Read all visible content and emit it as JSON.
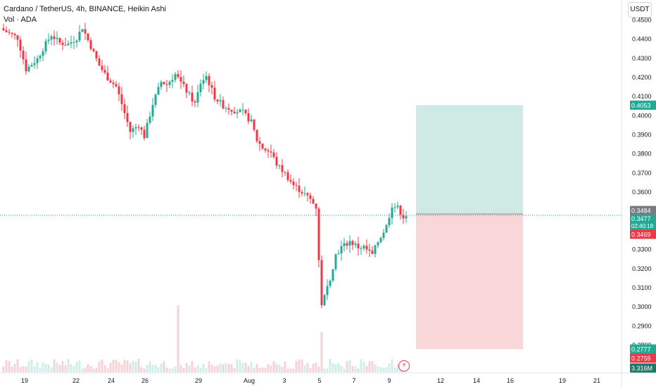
{
  "header": {
    "title": "Cardano / TetherUS, 4h, BINANCE, Heikin Ashi",
    "indicator": "Vol · ADA"
  },
  "currency_button": "USDT",
  "icons": {
    "alert": "lightning-icon"
  },
  "colors": {
    "up": "#22ab94",
    "down": "#f23645",
    "vol_up": "#d1ede8",
    "vol_down": "#f6d3d6",
    "target_zone": "#cfeae5",
    "stop_zone": "#f9d7d9",
    "price_line": "#22ab94"
  },
  "chart_data": {
    "type": "candlestick",
    "title": "Cardano / TetherUS, 4h, BINANCE, Heikin Ashi",
    "ylim": [
      0.2765,
      0.458
    ],
    "y_ticks": [
      "0.4500",
      "0.4400",
      "0.4300",
      "0.4200",
      "0.4100",
      "0.4000",
      "0.3900",
      "0.3800",
      "0.3700",
      "0.3600",
      "0.3300",
      "0.3200",
      "0.3100",
      "0.3000",
      "0.2900",
      "0.2800"
    ],
    "x_ticks": [
      "19",
      "22",
      "24",
      "26",
      "29",
      "Aug",
      "3",
      "5",
      "7",
      "9",
      "12",
      "14",
      "16",
      "19",
      "21"
    ],
    "price_labels": {
      "target": "0.4053",
      "entry": "0.3484",
      "last": "0.3477",
      "countdown": "02:40:18",
      "prev": "0.3469",
      "sl1": "0.2777",
      "sl2": "0.2759",
      "volume": "3.316M"
    },
    "position": {
      "target": 0.4053,
      "entry": 0.3484,
      "stop": 0.2777,
      "start_bar": 147,
      "end_bar": 185
    },
    "volume_spikes": [
      {
        "bar": 62,
        "level": 1.0
      },
      {
        "bar": 113,
        "level": 0.6
      },
      {
        "bar": 152,
        "level": 1.0
      },
      {
        "bar": 153,
        "level": 0.9
      }
    ],
    "path": [
      [
        0,
        0.4445
      ],
      [
        5,
        0.4405
      ],
      [
        8,
        0.424
      ],
      [
        12,
        0.4295
      ],
      [
        15,
        0.4375
      ],
      [
        17,
        0.442
      ],
      [
        20,
        0.4378
      ],
      [
        23,
        0.4372
      ],
      [
        26,
        0.4405
      ],
      [
        28,
        0.446
      ],
      [
        31,
        0.436
      ],
      [
        34,
        0.426
      ],
      [
        37,
        0.4195
      ],
      [
        40,
        0.415
      ],
      [
        42,
        0.406
      ],
      [
        45,
        0.3915
      ],
      [
        48,
        0.395
      ],
      [
        50,
        0.389
      ],
      [
        53,
        0.406
      ],
      [
        56,
        0.4175
      ],
      [
        58,
        0.416
      ],
      [
        61,
        0.4215
      ],
      [
        64,
        0.415
      ],
      [
        68,
        0.406
      ],
      [
        70,
        0.417
      ],
      [
        72,
        0.4205
      ],
      [
        75,
        0.4095
      ],
      [
        78,
        0.405
      ],
      [
        82,
        0.4025
      ],
      [
        85,
        0.4015
      ],
      [
        88,
        0.3965
      ],
      [
        90,
        0.387
      ],
      [
        92,
        0.383
      ],
      [
        95,
        0.3805
      ],
      [
        97,
        0.3745
      ],
      [
        100,
        0.3695
      ],
      [
        103,
        0.3635
      ],
      [
        106,
        0.36
      ],
      [
        109,
        0.356
      ],
      [
        111,
        0.352
      ],
      [
        112,
        0.325
      ],
      [
        113,
        0.3
      ],
      [
        114,
        0.305
      ],
      [
        116,
        0.315
      ],
      [
        118,
        0.327
      ],
      [
        120,
        0.331
      ],
      [
        123,
        0.334
      ],
      [
        126,
        0.331
      ],
      [
        128,
        0.331
      ],
      [
        131,
        0.327
      ],
      [
        133,
        0.334
      ],
      [
        136,
        0.342
      ],
      [
        138,
        0.353
      ],
      [
        140,
        0.3515
      ],
      [
        142,
        0.347
      ],
      [
        143,
        0.3477
      ]
    ]
  }
}
